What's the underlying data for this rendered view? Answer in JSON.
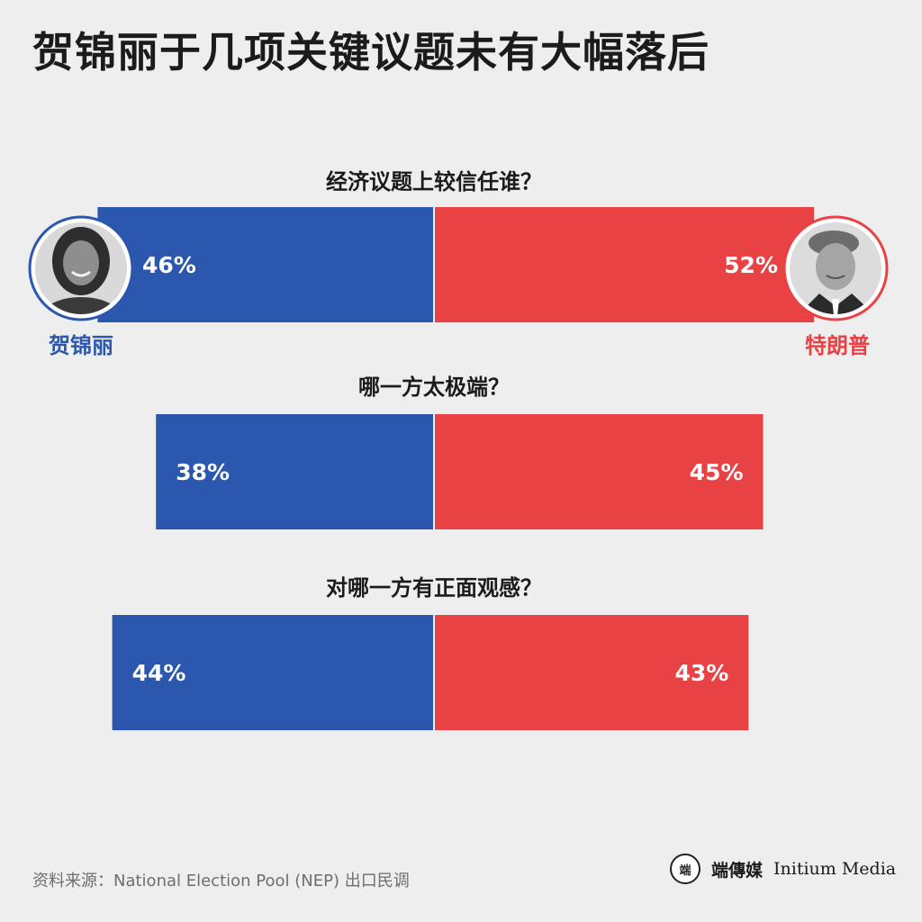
{
  "title": "贺锦丽于几项关键议题未有大幅落后",
  "source": "资料来源：National Election Pool (NEP) 出口民调",
  "logo": {
    "mark": "端",
    "name_cn": "端傳媒",
    "name_en": "Initium Media"
  },
  "colors": {
    "harris": "#2b57ae",
    "trump": "#e84245"
  },
  "chart_data": {
    "type": "bar",
    "orientation": "diverging-horizontal",
    "categories": [
      "经济议题上较信任谁？",
      "哪一方太极端？",
      "对哪一方有正面观感？"
    ],
    "series": [
      {
        "name": "贺锦丽",
        "values": [
          46,
          38,
          44
        ],
        "color": "#2b57ae"
      },
      {
        "name": "特朗普",
        "values": [
          52,
          45,
          43
        ],
        "color": "#e84245"
      }
    ],
    "value_suffix": "%"
  }
}
